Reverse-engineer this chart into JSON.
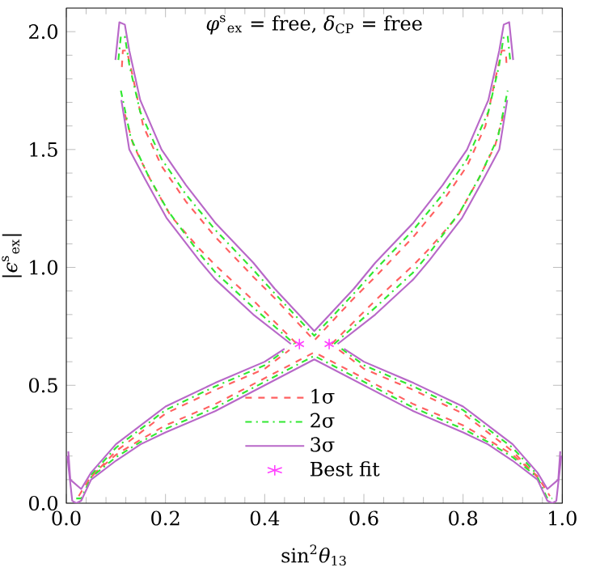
{
  "chart_data": {
    "type": "line",
    "title": "*φ*$^{s}$$_{ex}$ = free, *δ*$_{CP}$ = free",
    "xlabel": "sin$^{2}$*θ*$_{13}$",
    "ylabel": "|*ϵ*$^{s}$$_{ex}$|",
    "xlim": [
      0,
      1
    ],
    "ylim": [
      0,
      2.1
    ],
    "xticks": [
      {
        "value": 0,
        "label": "0.0"
      },
      0.2,
      0.4,
      0.6,
      0.8,
      {
        "value": 1,
        "label": "1.0"
      }
    ],
    "yticks": [
      {
        "value": 0,
        "label": "0.0"
      },
      0.5,
      {
        "value": 1,
        "label": "1.0"
      },
      1.5,
      {
        "value": 2,
        "label": "2.0"
      }
    ],
    "legend": "bottom",
    "series": [
      {
        "name": "1σ",
        "color": "#ff6060",
        "line_style": "dashed",
        "x": [
          0.112,
          0.114,
          0.122,
          0.135,
          0.155,
          0.192,
          0.241,
          0.3,
          0.377,
          0.42,
          0.46,
          0.5,
          0.54,
          0.58,
          0.623,
          0.7,
          0.759,
          0.808,
          0.845,
          0.865,
          0.878,
          0.886,
          0.888
        ],
        "values": [
          1.85,
          1.92,
          1.92,
          1.8,
          1.6,
          1.43,
          1.28,
          1.13,
          0.96,
          0.87,
          0.78,
          0.69,
          0.78,
          0.87,
          0.96,
          1.13,
          1.28,
          1.43,
          1.6,
          1.8,
          1.92,
          1.92,
          1.85
        ]
      },
      {
        "color": "#ff6060",
        "line_style": "dashed",
        "x": [
          0.118,
          0.135,
          0.17,
          0.21,
          0.268,
          0.3,
          0.377,
          0.465
        ],
        "values": [
          1.65,
          1.52,
          1.37,
          1.22,
          1.08,
          1.01,
          0.86,
          0.675
        ]
      },
      {
        "color": "#ff6060",
        "line_style": "dashed",
        "x": [
          0.535,
          0.623,
          0.7,
          0.732,
          0.79,
          0.83,
          0.865,
          0.882
        ],
        "values": [
          0.675,
          0.86,
          1.01,
          1.08,
          1.22,
          1.37,
          1.52,
          1.65
        ]
      },
      {
        "color": "#ff6060",
        "line_style": "dashed",
        "x": [
          0.05,
          0.1,
          0.2,
          0.3,
          0.4,
          0.45
        ],
        "values": [
          0.11,
          0.22,
          0.38,
          0.48,
          0.57,
          0.65
        ]
      },
      {
        "color": "#ff6060",
        "line_style": "dashed",
        "x": [
          0.55,
          0.6,
          0.7,
          0.8,
          0.9,
          0.95
        ],
        "values": [
          0.65,
          0.57,
          0.48,
          0.38,
          0.22,
          0.11
        ]
      },
      {
        "color": "#ff6060",
        "line_style": "dashed",
        "x": [
          0.025,
          0.05,
          0.1,
          0.15,
          0.2,
          0.3,
          0.4,
          0.5,
          0.6,
          0.7,
          0.8,
          0.85,
          0.9,
          0.95,
          0.975
        ],
        "values": [
          0.03,
          0.115,
          0.205,
          0.27,
          0.33,
          0.42,
          0.53,
          0.64,
          0.53,
          0.42,
          0.33,
          0.27,
          0.205,
          0.115,
          0.03
        ]
      },
      {
        "name": "2σ",
        "color": "#30e830",
        "line_style": "dashdot",
        "x": [
          0.105,
          0.11,
          0.118,
          0.127,
          0.149,
          0.192,
          0.241,
          0.3,
          0.377,
          0.42,
          0.46,
          0.5,
          0.54,
          0.58,
          0.623,
          0.7,
          0.759,
          0.808,
          0.851,
          0.873,
          0.882,
          0.89,
          0.895
        ],
        "values": [
          1.88,
          1.98,
          1.98,
          1.86,
          1.66,
          1.46,
          1.31,
          1.16,
          0.99,
          0.89,
          0.8,
          0.71,
          0.8,
          0.89,
          0.99,
          1.16,
          1.31,
          1.46,
          1.66,
          1.86,
          1.98,
          1.98,
          1.88
        ]
      },
      {
        "color": "#30e830",
        "line_style": "dashdot",
        "x": [
          0.11,
          0.13,
          0.165,
          0.205,
          0.268,
          0.3,
          0.377,
          0.46
        ],
        "values": [
          1.75,
          1.55,
          1.39,
          1.24,
          1.06,
          0.98,
          0.83,
          0.675
        ]
      },
      {
        "color": "#30e830",
        "line_style": "dashdot",
        "x": [
          0.54,
          0.623,
          0.7,
          0.732,
          0.795,
          0.835,
          0.87,
          0.89
        ],
        "values": [
          0.675,
          0.83,
          0.98,
          1.06,
          1.24,
          1.39,
          1.55,
          1.75
        ]
      },
      {
        "color": "#30e830",
        "line_style": "dashdot",
        "x": [
          0.05,
          0.1,
          0.2,
          0.3,
          0.4,
          0.445
        ],
        "values": [
          0.12,
          0.235,
          0.395,
          0.495,
          0.585,
          0.655
        ]
      },
      {
        "color": "#30e830",
        "line_style": "dashdot",
        "x": [
          0.555,
          0.6,
          0.7,
          0.8,
          0.9,
          0.95
        ],
        "values": [
          0.655,
          0.585,
          0.495,
          0.395,
          0.235,
          0.12
        ]
      },
      {
        "color": "#30e830",
        "line_style": "dashdot",
        "x": [
          0.02,
          0.03,
          0.05,
          0.1,
          0.15,
          0.2,
          0.3,
          0.4,
          0.5,
          0.6,
          0.7,
          0.8,
          0.85,
          0.9,
          0.95,
          0.97,
          0.98
        ],
        "values": [
          0.02,
          0.02,
          0.11,
          0.195,
          0.26,
          0.315,
          0.405,
          0.515,
          0.625,
          0.515,
          0.405,
          0.315,
          0.26,
          0.195,
          0.11,
          0.02,
          0.02
        ]
      },
      {
        "name": "3σ",
        "color": "#b868c8",
        "line_style": "solid",
        "x": [
          0.099,
          0.107,
          0.118,
          0.127,
          0.149,
          0.192,
          0.241,
          0.3,
          0.377,
          0.42,
          0.46,
          0.5,
          0.54,
          0.58,
          0.623,
          0.7,
          0.759,
          0.808,
          0.851,
          0.873,
          0.882,
          0.893,
          0.901
        ],
        "values": [
          1.88,
          2.04,
          2.03,
          1.92,
          1.71,
          1.5,
          1.35,
          1.19,
          1.02,
          0.91,
          0.82,
          0.73,
          0.82,
          0.91,
          1.02,
          1.19,
          1.35,
          1.5,
          1.71,
          1.92,
          2.03,
          2.04,
          1.88
        ]
      },
      {
        "color": "#b868c8",
        "line_style": "solid",
        "x": [
          0.111,
          0.127,
          0.16,
          0.202,
          0.268,
          0.3,
          0.377,
          0.453
        ],
        "values": [
          1.71,
          1.5,
          1.37,
          1.21,
          1.03,
          0.95,
          0.8,
          0.675
        ]
      },
      {
        "color": "#b868c8",
        "line_style": "solid",
        "x": [
          0.547,
          0.623,
          0.7,
          0.732,
          0.798,
          0.84,
          0.873,
          0.889
        ],
        "values": [
          0.675,
          0.8,
          0.95,
          1.03,
          1.21,
          1.37,
          1.5,
          1.71
        ]
      },
      {
        "color": "#b868c8",
        "line_style": "solid",
        "x": [
          0.004,
          0.008,
          0.03,
          0.05,
          0.1,
          0.2,
          0.3,
          0.4,
          0.44
        ],
        "values": [
          0.22,
          0.1,
          0.06,
          0.13,
          0.25,
          0.41,
          0.51,
          0.6,
          0.655
        ]
      },
      {
        "color": "#b868c8",
        "line_style": "solid",
        "x": [
          0.56,
          0.6,
          0.7,
          0.8,
          0.9,
          0.95,
          0.97,
          0.992,
          0.996
        ],
        "values": [
          0.655,
          0.6,
          0.51,
          0.41,
          0.25,
          0.13,
          0.06,
          0.1,
          0.22
        ]
      },
      {
        "color": "#b868c8",
        "line_style": "solid",
        "x": [
          0.002,
          0.012,
          0.02,
          0.03,
          0.05,
          0.1,
          0.15,
          0.2,
          0.3,
          0.4,
          0.5,
          0.6,
          0.7,
          0.8,
          0.85,
          0.9,
          0.95,
          0.97,
          0.98,
          0.988,
          0.998
        ],
        "values": [
          0.2,
          0.01,
          0.0,
          0.01,
          0.1,
          0.18,
          0.25,
          0.3,
          0.39,
          0.5,
          0.61,
          0.5,
          0.39,
          0.3,
          0.25,
          0.18,
          0.1,
          0.01,
          0.0,
          0.01,
          0.2
        ]
      },
      {
        "name": "Best fit",
        "type": "scatter",
        "color": "#ff40ff",
        "marker": "cross",
        "x": [
          0.47,
          0.53
        ],
        "values": [
          0.675,
          0.675
        ]
      }
    ]
  }
}
